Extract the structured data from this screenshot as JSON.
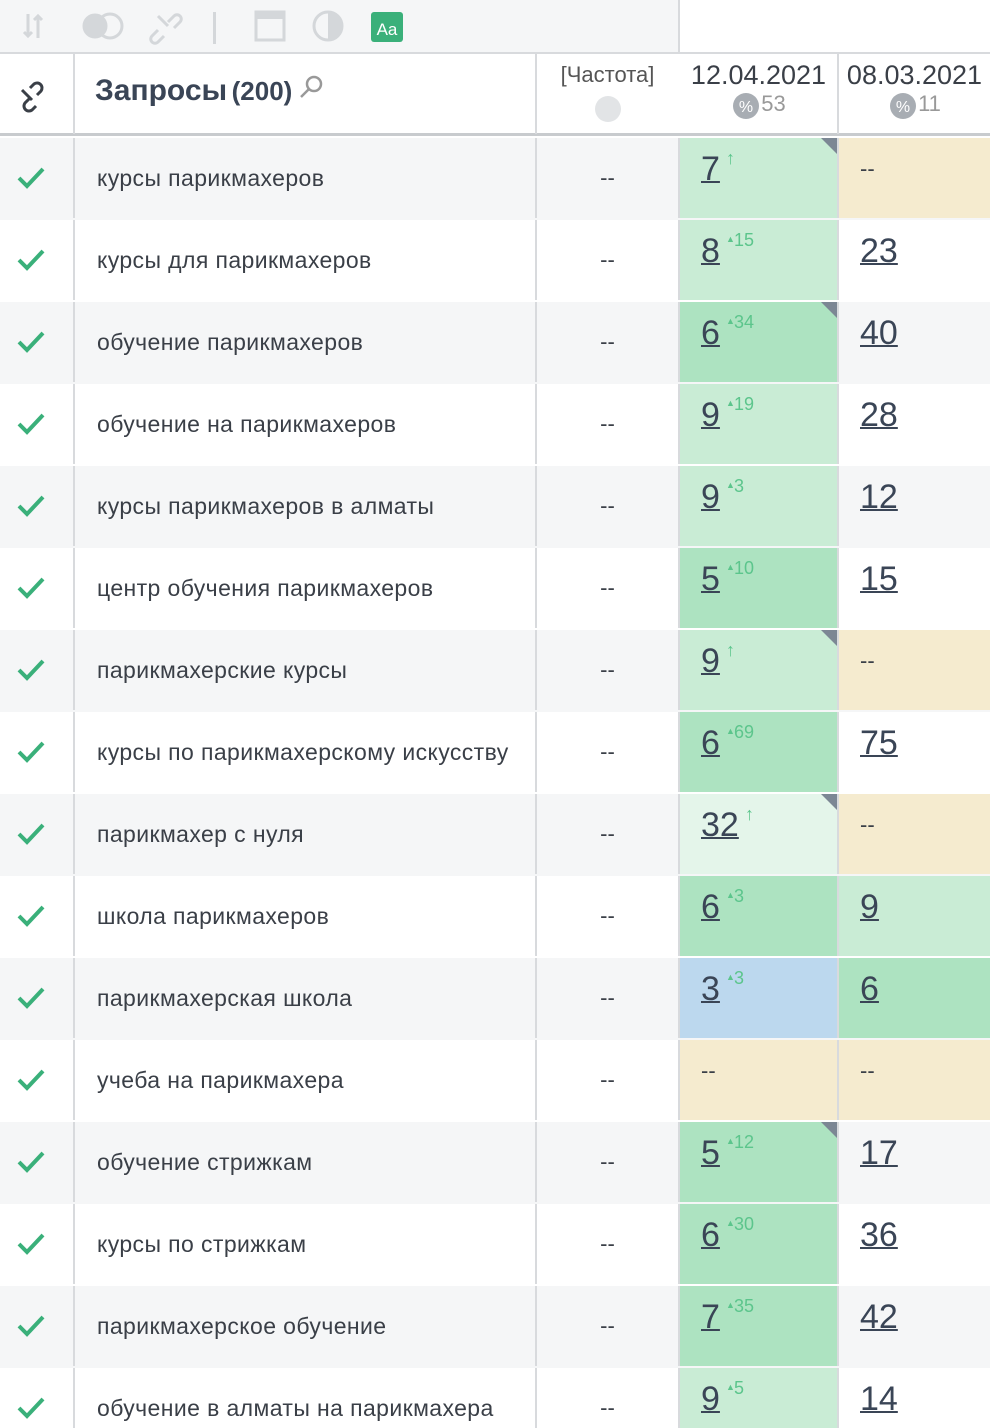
{
  "header": {
    "title": "Запросы",
    "count": "(200)",
    "frequency": "[Частота]",
    "date1": "12.04.2021",
    "date1_pct": 53,
    "date2": "08.03.2021",
    "date2_pct": 11
  },
  "rows": [
    {
      "query": "курсы парикмахеров",
      "freq": "--",
      "pos1": 7,
      "delta1": "↑",
      "bg1": "#c9ecd5",
      "marker": true,
      "pos2": "--",
      "bg2": "#f5ebcf"
    },
    {
      "query": "курсы для парикмахеров",
      "freq": "--",
      "pos1": 8,
      "delta1": 15,
      "bg1": "#c9ecd5",
      "pos2": 23
    },
    {
      "query": "обучение парикмахеров",
      "freq": "--",
      "pos1": 6,
      "delta1": 34,
      "bg1": "#ade3c1",
      "marker": true,
      "pos2": 40
    },
    {
      "query": "обучение на парикмахеров",
      "freq": "--",
      "pos1": 9,
      "delta1": 19,
      "bg1": "#c9ecd5",
      "pos2": 28
    },
    {
      "query": "курсы парикмахеров в алматы",
      "freq": "--",
      "pos1": 9,
      "delta1": 3,
      "bg1": "#c9ecd5",
      "pos2": 12
    },
    {
      "query": "центр обучения парикмахеров",
      "freq": "--",
      "pos1": 5,
      "delta1": 10,
      "bg1": "#ade3c1",
      "pos2": 15
    },
    {
      "query": "парикмахерские курсы",
      "freq": "--",
      "pos1": 9,
      "delta1": "↑",
      "bg1": "#c9ecd5",
      "marker": true,
      "pos2": "--",
      "bg2": "#f5ebcf"
    },
    {
      "query": "курсы по парикмахерскому искусству",
      "freq": "--",
      "pos1": 6,
      "delta1": 69,
      "bg1": "#ade3c1",
      "pos2": 75
    },
    {
      "query": "парикмахер с нуля",
      "freq": "--",
      "pos1": 32,
      "delta1": "↑",
      "bg1": "#e4f5ea",
      "marker": true,
      "pos2": "--",
      "bg2": "#f5ebcf"
    },
    {
      "query": "школа парикмахеров",
      "freq": "--",
      "pos1": 6,
      "delta1": 3,
      "bg1": "#ade3c1",
      "pos2": 9,
      "bg2": "#c9ecd5"
    },
    {
      "query": "парикмахерская школа",
      "freq": "--",
      "pos1": 3,
      "delta1": 3,
      "bg1": "#bcd8ee",
      "pos2": 6,
      "bg2": "#ade3c1"
    },
    {
      "query": "учеба на парикмахера",
      "freq": "--",
      "pos1": "--",
      "bg1": "#f5ebcf",
      "pos2": "--",
      "bg2": "#f5ebcf"
    },
    {
      "query": "обучение стрижкам",
      "freq": "--",
      "pos1": 5,
      "delta1": 12,
      "bg1": "#ade3c1",
      "marker": true,
      "pos2": 17
    },
    {
      "query": "курсы по стрижкам",
      "freq": "--",
      "pos1": 6,
      "delta1": 30,
      "bg1": "#ade3c1",
      "pos2": 36
    },
    {
      "query": "парикмахерское обучение",
      "freq": "--",
      "pos1": 7,
      "delta1": 35,
      "bg1": "#ade3c1",
      "pos2": 42
    },
    {
      "query": "обучение в алматы на парикмахера",
      "freq": "--",
      "pos1": 9,
      "delta1": 5,
      "bg1": "#c9ecd5",
      "pos2": 14
    }
  ]
}
